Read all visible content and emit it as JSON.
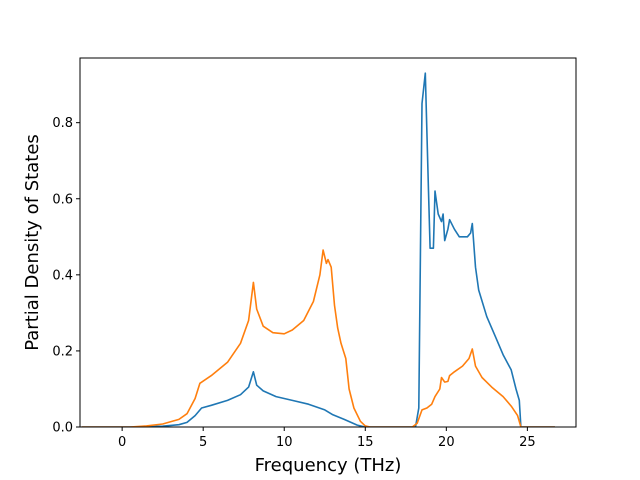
{
  "chart_data": {
    "type": "line",
    "title": "",
    "xlabel": "Frequency (THz)",
    "ylabel": "Partial Density of States",
    "xlim": [
      -2.6,
      28.0
    ],
    "ylim": [
      0.0,
      0.97
    ],
    "xticks": [
      0,
      5,
      10,
      15,
      20,
      25
    ],
    "xtick_labels": [
      "0",
      "5",
      "10",
      "15",
      "20",
      "25"
    ],
    "yticks": [
      0.0,
      0.2,
      0.4,
      0.6,
      0.8
    ],
    "ytick_labels": [
      "0.0",
      "0.2",
      "0.4",
      "0.6",
      "0.8"
    ],
    "grid": false,
    "legend": "none",
    "series": [
      {
        "color": "#1f77b4",
        "points": [
          [
            -2.5,
            0.0
          ],
          [
            1.0,
            0.0
          ],
          [
            2.5,
            0.002
          ],
          [
            3.5,
            0.006
          ],
          [
            4.0,
            0.012
          ],
          [
            4.5,
            0.03
          ],
          [
            4.9,
            0.05
          ],
          [
            5.5,
            0.057
          ],
          [
            6.5,
            0.07
          ],
          [
            7.3,
            0.085
          ],
          [
            7.8,
            0.105
          ],
          [
            8.1,
            0.145
          ],
          [
            8.3,
            0.11
          ],
          [
            8.7,
            0.095
          ],
          [
            9.5,
            0.08
          ],
          [
            10.5,
            0.07
          ],
          [
            11.5,
            0.06
          ],
          [
            12.5,
            0.045
          ],
          [
            13.0,
            0.032
          ],
          [
            13.7,
            0.02
          ],
          [
            14.5,
            0.005
          ],
          [
            15.0,
            0.0
          ],
          [
            18.1,
            0.0
          ],
          [
            18.3,
            0.05
          ],
          [
            18.5,
            0.85
          ],
          [
            18.7,
            0.93
          ],
          [
            18.9,
            0.62
          ],
          [
            19.0,
            0.47
          ],
          [
            19.2,
            0.47
          ],
          [
            19.3,
            0.62
          ],
          [
            19.5,
            0.56
          ],
          [
            19.7,
            0.54
          ],
          [
            19.8,
            0.56
          ],
          [
            19.9,
            0.49
          ],
          [
            20.1,
            0.52
          ],
          [
            20.2,
            0.545
          ],
          [
            20.5,
            0.52
          ],
          [
            20.8,
            0.5
          ],
          [
            21.3,
            0.5
          ],
          [
            21.5,
            0.51
          ],
          [
            21.6,
            0.535
          ],
          [
            21.8,
            0.42
          ],
          [
            22.0,
            0.36
          ],
          [
            22.5,
            0.29
          ],
          [
            23.0,
            0.24
          ],
          [
            23.5,
            0.19
          ],
          [
            24.0,
            0.15
          ],
          [
            24.3,
            0.1
          ],
          [
            24.5,
            0.07
          ],
          [
            24.6,
            0.0
          ],
          [
            26.7,
            0.0
          ]
        ]
      },
      {
        "color": "#ff7f0e",
        "points": [
          [
            -2.5,
            0.0
          ],
          [
            0.5,
            0.0
          ],
          [
            1.5,
            0.003
          ],
          [
            2.5,
            0.008
          ],
          [
            3.5,
            0.02
          ],
          [
            4.0,
            0.035
          ],
          [
            4.5,
            0.075
          ],
          [
            4.8,
            0.115
          ],
          [
            5.5,
            0.135
          ],
          [
            6.5,
            0.17
          ],
          [
            7.3,
            0.22
          ],
          [
            7.8,
            0.28
          ],
          [
            8.1,
            0.38
          ],
          [
            8.3,
            0.31
          ],
          [
            8.7,
            0.265
          ],
          [
            9.3,
            0.248
          ],
          [
            10.0,
            0.245
          ],
          [
            10.5,
            0.255
          ],
          [
            11.2,
            0.28
          ],
          [
            11.8,
            0.33
          ],
          [
            12.2,
            0.4
          ],
          [
            12.4,
            0.465
          ],
          [
            12.6,
            0.43
          ],
          [
            12.7,
            0.44
          ],
          [
            12.9,
            0.42
          ],
          [
            13.1,
            0.32
          ],
          [
            13.3,
            0.26
          ],
          [
            13.5,
            0.22
          ],
          [
            13.8,
            0.18
          ],
          [
            14.0,
            0.1
          ],
          [
            14.3,
            0.05
          ],
          [
            14.7,
            0.015
          ],
          [
            15.0,
            0.003
          ],
          [
            15.3,
            0.0
          ],
          [
            17.9,
            0.0
          ],
          [
            18.2,
            0.01
          ],
          [
            18.5,
            0.045
          ],
          [
            18.8,
            0.05
          ],
          [
            19.1,
            0.06
          ],
          [
            19.3,
            0.08
          ],
          [
            19.6,
            0.1
          ],
          [
            19.7,
            0.13
          ],
          [
            19.9,
            0.118
          ],
          [
            20.1,
            0.12
          ],
          [
            20.2,
            0.135
          ],
          [
            20.5,
            0.145
          ],
          [
            21.0,
            0.16
          ],
          [
            21.4,
            0.18
          ],
          [
            21.6,
            0.205
          ],
          [
            21.8,
            0.16
          ],
          [
            22.2,
            0.13
          ],
          [
            22.8,
            0.105
          ],
          [
            23.5,
            0.08
          ],
          [
            24.0,
            0.055
          ],
          [
            24.4,
            0.03
          ],
          [
            24.6,
            0.0
          ],
          [
            26.7,
            0.0
          ]
        ]
      }
    ]
  }
}
